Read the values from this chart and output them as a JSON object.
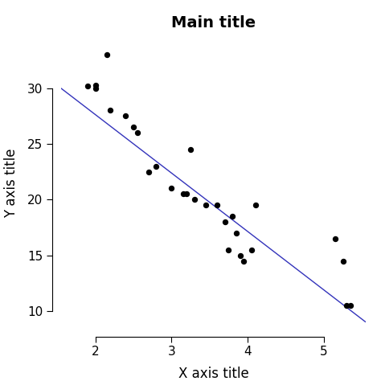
{
  "title": "Main title",
  "xlabel": "X axis title",
  "ylabel": "Y axis title",
  "title_fontsize": 14,
  "axis_label_fontsize": 12,
  "tick_fontsize": 11,
  "scatter_color": "#000000",
  "scatter_size": 28,
  "line_color": "#3333BB",
  "line_width": 1.0,
  "xlim": [
    1.55,
    5.55
  ],
  "ylim": [
    8.5,
    34.5
  ],
  "xticks": [
    2,
    3,
    4,
    5
  ],
  "yticks": [
    10,
    15,
    20,
    25,
    30
  ],
  "x_data": [
    1.9,
    2.0,
    2.0,
    2.15,
    2.2,
    2.4,
    2.5,
    2.55,
    2.7,
    2.8,
    3.0,
    3.15,
    3.2,
    3.25,
    3.3,
    3.45,
    3.6,
    3.7,
    3.75,
    3.8,
    3.85,
    3.9,
    3.95,
    4.05,
    4.1,
    5.15,
    5.25,
    5.3,
    5.35
  ],
  "y_data": [
    30.2,
    30.3,
    30.0,
    33.0,
    28.0,
    27.5,
    26.5,
    26.0,
    22.5,
    23.0,
    21.0,
    20.5,
    20.5,
    24.5,
    20.0,
    19.5,
    19.5,
    18.0,
    15.5,
    18.5,
    17.0,
    15.0,
    14.5,
    15.5,
    19.5,
    16.5,
    14.5,
    10.5,
    10.5
  ],
  "line_x": [
    1.55,
    5.55
  ],
  "line_y": [
    30.0,
    9.0
  ],
  "bg_color": "#ffffff"
}
